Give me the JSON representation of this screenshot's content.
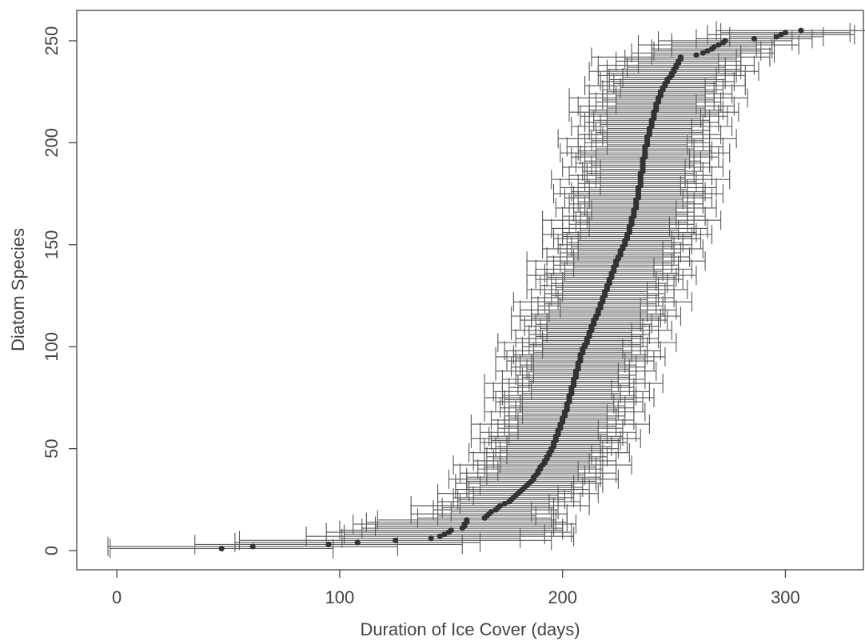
{
  "chart_data": {
    "type": "scatter",
    "xlabel": "Duration of Ice Cover (days)",
    "ylabel": "Diatom Species",
    "color": "#333333",
    "xlim": [
      -18,
      335
    ],
    "ylim": [
      -9.4,
      264.9
    ],
    "xticks": [
      0,
      100,
      200,
      300
    ],
    "yticks": [
      0,
      50,
      100,
      150,
      200,
      250
    ],
    "x": [
      47,
      61,
      95,
      108,
      125,
      141,
      145,
      147,
      149,
      150,
      155,
      156,
      156,
      157,
      157,
      165,
      166,
      167,
      168,
      170,
      171,
      172,
      174,
      176,
      177,
      178,
      179,
      180,
      181,
      182,
      183,
      184,
      185,
      186,
      187,
      187,
      188,
      189,
      189,
      190,
      190,
      191,
      192,
      192,
      193,
      193,
      194,
      194,
      195,
      195,
      196,
      196,
      196,
      197,
      197,
      197,
      198,
      198,
      198,
      199,
      199,
      199,
      200,
      200,
      200,
      201,
      201,
      201,
      202,
      202,
      202,
      202,
      203,
      203,
      203,
      203,
      204,
      204,
      204,
      204,
      205,
      205,
      205,
      205,
      206,
      206,
      206,
      206,
      207,
      207,
      207,
      207,
      208,
      208,
      208,
      208,
      209,
      209,
      209,
      210,
      210,
      211,
      211,
      211,
      212,
      212,
      212,
      213,
      213,
      213,
      214,
      214,
      214,
      215,
      215,
      216,
      216,
      216,
      217,
      217,
      217,
      218,
      218,
      218,
      219,
      219,
      219,
      220,
      220,
      220,
      221,
      221,
      221,
      222,
      222,
      222,
      223,
      223,
      223,
      224,
      224,
      224,
      225,
      225,
      226,
      226,
      226,
      227,
      227,
      228,
      228,
      228,
      229,
      229,
      229,
      230,
      230,
      230,
      230,
      231,
      231,
      231,
      231,
      232,
      232,
      232,
      232,
      233,
      233,
      233,
      233,
      233,
      234,
      234,
      234,
      234,
      234,
      234,
      235,
      235,
      235,
      235,
      235,
      235,
      235,
      236,
      236,
      236,
      236,
      236,
      236,
      236,
      237,
      237,
      237,
      237,
      237,
      237,
      238,
      238,
      238,
      238,
      238,
      239,
      239,
      239,
      239,
      240,
      240,
      240,
      240,
      241,
      241,
      241,
      241,
      242,
      242,
      242,
      242,
      243,
      243,
      243,
      244,
      244,
      244,
      245,
      245,
      246,
      246,
      247,
      247,
      248,
      249,
      249,
      250,
      250,
      251,
      251,
      252,
      252,
      253,
      253,
      260,
      263,
      265,
      267,
      268,
      270,
      272,
      273,
      286,
      296,
      298,
      300,
      307
    ],
    "y": [
      1,
      2,
      3,
      4,
      5,
      6,
      7,
      8,
      9,
      10,
      11,
      12,
      13,
      14,
      15,
      16,
      17,
      18,
      19,
      20,
      21,
      22,
      23,
      24,
      25,
      26,
      27,
      28,
      29,
      30,
      31,
      32,
      33,
      34,
      35,
      36,
      37,
      38,
      39,
      40,
      41,
      42,
      43,
      44,
      45,
      46,
      47,
      48,
      49,
      50,
      51,
      52,
      53,
      54,
      55,
      56,
      57,
      58,
      59,
      60,
      61,
      62,
      63,
      64,
      65,
      66,
      67,
      68,
      69,
      70,
      71,
      72,
      73,
      74,
      75,
      76,
      77,
      78,
      79,
      80,
      81,
      82,
      83,
      84,
      85,
      86,
      87,
      88,
      89,
      90,
      91,
      92,
      93,
      94,
      95,
      96,
      97,
      98,
      99,
      100,
      101,
      102,
      103,
      104,
      105,
      106,
      107,
      108,
      109,
      110,
      111,
      112,
      113,
      114,
      115,
      116,
      117,
      118,
      119,
      120,
      121,
      122,
      123,
      124,
      125,
      126,
      127,
      128,
      129,
      130,
      131,
      132,
      133,
      134,
      135,
      136,
      137,
      138,
      139,
      140,
      141,
      142,
      143,
      144,
      145,
      146,
      147,
      148,
      149,
      150,
      151,
      152,
      153,
      154,
      155,
      156,
      157,
      158,
      159,
      160,
      161,
      162,
      163,
      164,
      165,
      166,
      167,
      168,
      169,
      170,
      171,
      172,
      173,
      174,
      175,
      176,
      177,
      178,
      179,
      180,
      181,
      182,
      183,
      184,
      185,
      186,
      187,
      188,
      189,
      190,
      191,
      192,
      193,
      194,
      195,
      196,
      197,
      198,
      199,
      200,
      201,
      202,
      203,
      204,
      205,
      206,
      207,
      208,
      209,
      210,
      211,
      212,
      213,
      214,
      215,
      216,
      217,
      218,
      219,
      220,
      221,
      222,
      223,
      224,
      225,
      226,
      227,
      228,
      229,
      230,
      231,
      232,
      233,
      234,
      235,
      236,
      237,
      238,
      239,
      240,
      241,
      242,
      243,
      244,
      245,
      246,
      247,
      248,
      249,
      250,
      251,
      252,
      253,
      254,
      255
    ],
    "xerr": [
      50,
      65,
      60,
      55,
      70,
      40,
      60,
      45,
      55,
      50,
      45,
      40,
      50,
      45,
      40,
      30,
      22,
      35,
      18,
      28,
      25,
      40,
      20,
      32,
      24,
      27,
      19,
      36,
      23,
      30,
      26,
      21,
      33,
      29,
      38,
      30,
      22,
      35,
      18,
      28,
      25,
      40,
      20,
      32,
      24,
      27,
      19,
      36,
      23,
      30,
      26,
      21,
      33,
      29,
      38,
      30,
      22,
      35,
      18,
      28,
      25,
      40,
      20,
      32,
      24,
      27,
      19,
      36,
      23,
      30,
      26,
      21,
      33,
      29,
      38,
      30,
      22,
      35,
      18,
      28,
      25,
      40,
      20,
      32,
      24,
      27,
      19,
      36,
      23,
      30,
      26,
      21,
      33,
      29,
      38,
      30,
      22,
      35,
      18,
      28,
      25,
      40,
      20,
      32,
      24,
      27,
      19,
      36,
      23,
      30,
      26,
      21,
      33,
      29,
      38,
      30,
      22,
      35,
      18,
      28,
      25,
      40,
      20,
      32,
      24,
      27,
      19,
      36,
      23,
      30,
      26,
      21,
      33,
      29,
      38,
      30,
      22,
      35,
      18,
      28,
      25,
      40,
      20,
      32,
      24,
      27,
      19,
      36,
      23,
      30,
      26,
      21,
      33,
      29,
      38,
      30,
      22,
      35,
      18,
      28,
      25,
      40,
      20,
      32,
      24,
      27,
      19,
      36,
      23,
      30,
      26,
      21,
      33,
      29,
      38,
      30,
      22,
      35,
      18,
      28,
      25,
      40,
      20,
      32,
      24,
      27,
      19,
      36,
      23,
      30,
      26,
      21,
      33,
      29,
      38,
      30,
      22,
      35,
      18,
      28,
      25,
      40,
      20,
      32,
      24,
      27,
      19,
      36,
      23,
      30,
      26,
      21,
      33,
      29,
      38,
      30,
      22,
      35,
      18,
      28,
      25,
      40,
      20,
      32,
      24,
      27,
      19,
      36,
      23,
      30,
      26,
      21,
      33,
      29,
      38,
      30,
      22,
      35,
      18,
      28,
      25,
      40,
      20,
      32,
      24,
      27,
      19,
      36,
      23,
      30,
      26,
      21,
      33,
      29,
      38
    ]
  }
}
